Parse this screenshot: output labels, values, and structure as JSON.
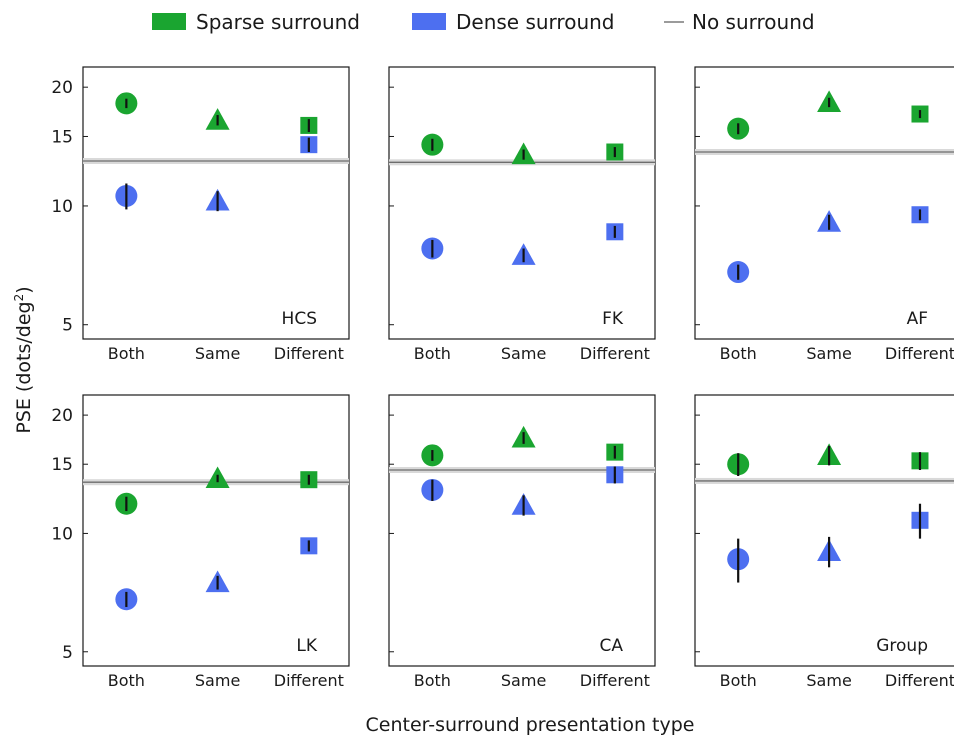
{
  "legend": {
    "placement": "top-center",
    "items": [
      {
        "label": "Sparse surround",
        "color": "#1aa530",
        "kind": "bar"
      },
      {
        "label": "Dense surround",
        "color": "#4d6ff0",
        "kind": "bar"
      },
      {
        "label": "No surround",
        "color": "#7a7a7a",
        "kind": "line"
      }
    ]
  },
  "ylabel_main": "PSE (dots/deg",
  "ylabel_sup": "2",
  "ylabel_close": ")",
  "xlabel": "Center-surround presentation type",
  "chart_data": {
    "type": "scatter",
    "yscale": "log",
    "ylim": [
      4.6,
      22.5
    ],
    "yticks": [
      5,
      10,
      15,
      20
    ],
    "categories": [
      "Both",
      "Same",
      "Different"
    ],
    "markers": {
      "Both": "circle",
      "Same": "triangle",
      "Different": "square"
    },
    "colors": {
      "Sparse surround": "#1aa530",
      "Dense surround": "#4d6ff0"
    },
    "panels": [
      {
        "name": "HCS",
        "no_surround": 13.0,
        "sparse": {
          "values": [
            18.2,
            16.5,
            16.0
          ],
          "err": [
            0.5,
            0.5,
            0.6
          ]
        },
        "dense": {
          "values": [
            10.6,
            10.3,
            14.3
          ],
          "err": [
            0.8,
            0.6,
            0.6
          ]
        }
      },
      {
        "name": "FK",
        "no_surround": 12.9,
        "sparse": {
          "values": [
            14.3,
            13.5,
            13.7
          ],
          "err": [
            0.5,
            0.4,
            0.4
          ]
        },
        "dense": {
          "values": [
            7.8,
            7.5,
            8.6
          ],
          "err": [
            0.4,
            0.3,
            0.3
          ]
        }
      },
      {
        "name": "AF",
        "no_surround": 13.7,
        "sparse": {
          "values": [
            15.7,
            18.3,
            17.1
          ],
          "err": [
            0.5,
            0.5,
            0.4
          ]
        },
        "dense": {
          "values": [
            6.8,
            9.1,
            9.5
          ],
          "err": [
            0.3,
            0.4,
            0.3
          ]
        }
      },
      {
        "name": "LK",
        "no_surround": 13.5,
        "sparse": {
          "values": [
            11.9,
            13.8,
            13.7
          ],
          "err": [
            0.5,
            0.3,
            0.4
          ]
        },
        "dense": {
          "values": [
            6.8,
            7.5,
            9.3
          ],
          "err": [
            0.3,
            0.3,
            0.3
          ]
        }
      },
      {
        "name": "CA",
        "no_surround": 14.5,
        "sparse": {
          "values": [
            15.8,
            17.5,
            16.1
          ],
          "err": [
            0.5,
            0.6,
            0.6
          ]
        },
        "dense": {
          "values": [
            12.9,
            11.8,
            14.1
          ],
          "err": [
            0.8,
            0.7,
            0.7
          ]
        }
      },
      {
        "name": "Group",
        "no_surround": 13.6,
        "sparse": {
          "values": [
            15.0,
            15.8,
            15.3
          ],
          "err": [
            1.0,
            0.9,
            0.8
          ]
        },
        "dense": {
          "values": [
            8.6,
            9.0,
            10.8
          ],
          "err": [
            1.1,
            0.8,
            1.1
          ]
        }
      }
    ]
  }
}
